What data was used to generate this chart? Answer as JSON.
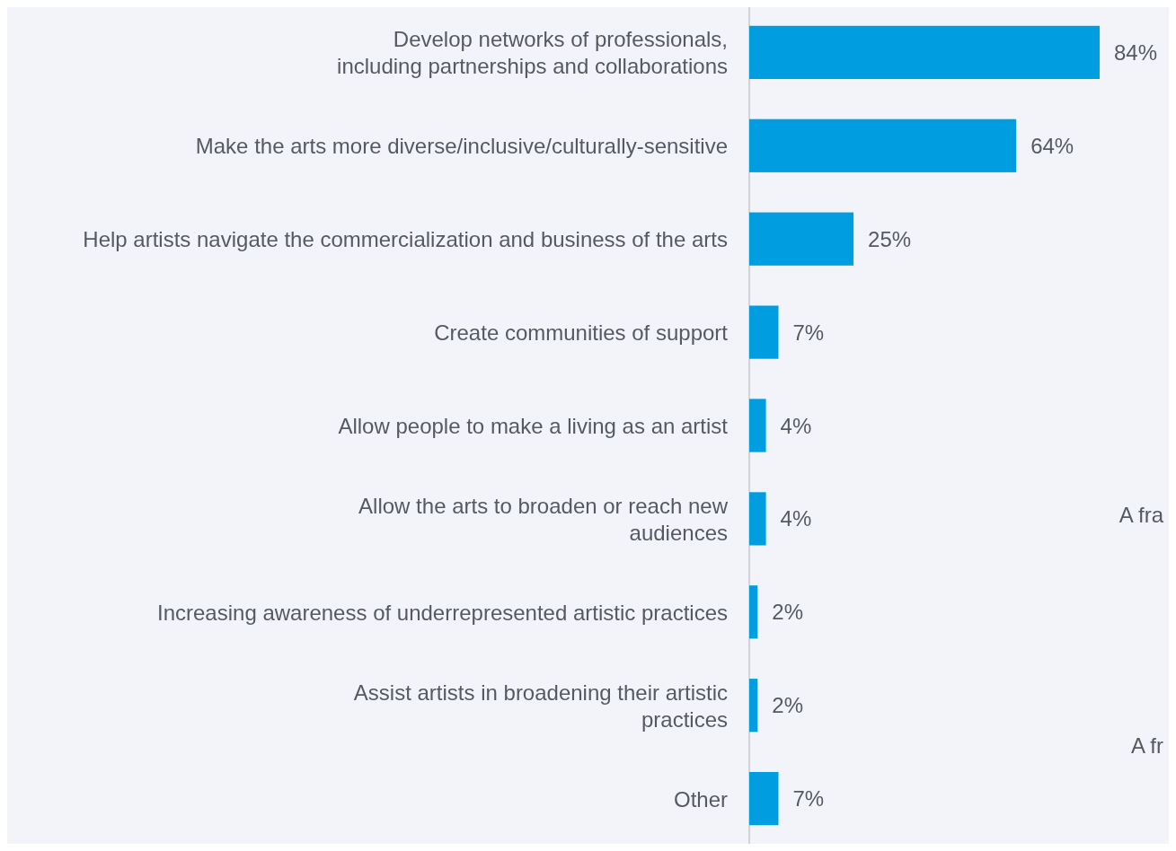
{
  "chart_data": {
    "type": "bar",
    "orientation": "horizontal",
    "categories": [
      "Develop networks of professionals,\nincluding partnerships and collaborations",
      "Make the arts more diverse/inclusive/culturally-sensitive",
      "Help artists navigate the commercialization and business of the arts",
      "Create communities of support",
      "Allow people to make a living as an artist",
      "Allow the arts to broaden or reach new\naudiences",
      "Increasing awareness of underrepresented artistic practices",
      "Assist artists in broadening their artistic\npractices",
      "Other"
    ],
    "values": [
      84,
      64,
      25,
      7,
      4,
      4,
      2,
      2,
      7
    ],
    "value_labels": [
      "84%",
      "64%",
      "25%",
      "7%",
      "4%",
      "4%",
      "2%",
      "2%",
      "7%"
    ],
    "color": "#009de0",
    "tick_labels": "y",
    "annotations": [
      "A fra",
      "A fr"
    ]
  }
}
